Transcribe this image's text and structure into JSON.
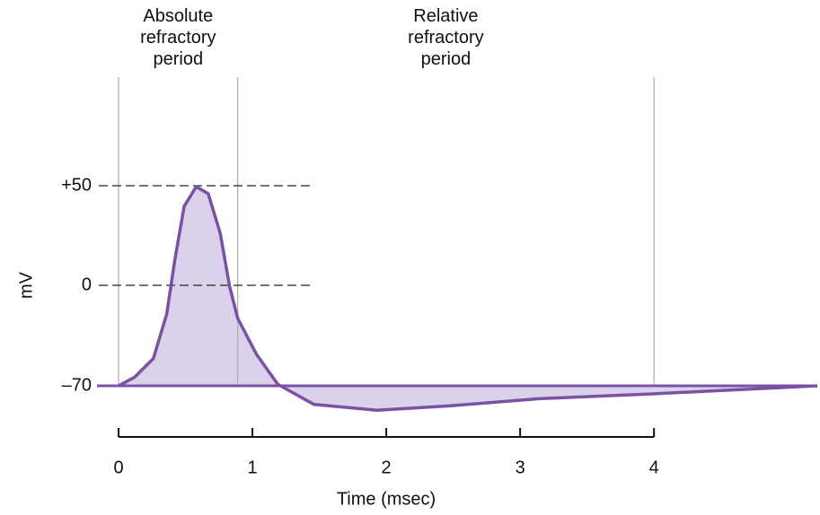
{
  "chart_data": {
    "type": "line",
    "x_label": "Time (msec)",
    "y_label": "mV",
    "x": [
      0,
      0.12,
      0.26,
      0.36,
      0.42,
      0.49,
      0.58,
      0.67,
      0.76,
      0.83,
      0.89,
      1.03,
      1.19,
      1.46,
      1.93,
      2.47,
      3.14,
      3.99,
      5.22
    ],
    "series": [
      {
        "color": "#7b52a3",
        "fill": "#dcd1ea",
        "values": [
          -70,
          -64,
          -51,
          -20,
          12.6,
          39.6,
          49.5,
          46,
          26,
          -1,
          -23,
          -48,
          -69,
          -83,
          -87,
          -84,
          -79,
          -75.6,
          -70
        ]
      }
    ],
    "xlim": [
      0,
      5.22
    ],
    "xticks": [
      0,
      1,
      2,
      3,
      4
    ],
    "yticks": [
      {
        "value": -70,
        "label": "–70"
      },
      0,
      {
        "value": 50,
        "label": "+50"
      }
    ],
    "annotations": [
      {
        "text": "Absolute refractory period",
        "x_start": 0,
        "x_end": 0.89
      },
      {
        "text": "Relative refractory period",
        "x_start": 0.89,
        "x_end": 4
      }
    ]
  }
}
